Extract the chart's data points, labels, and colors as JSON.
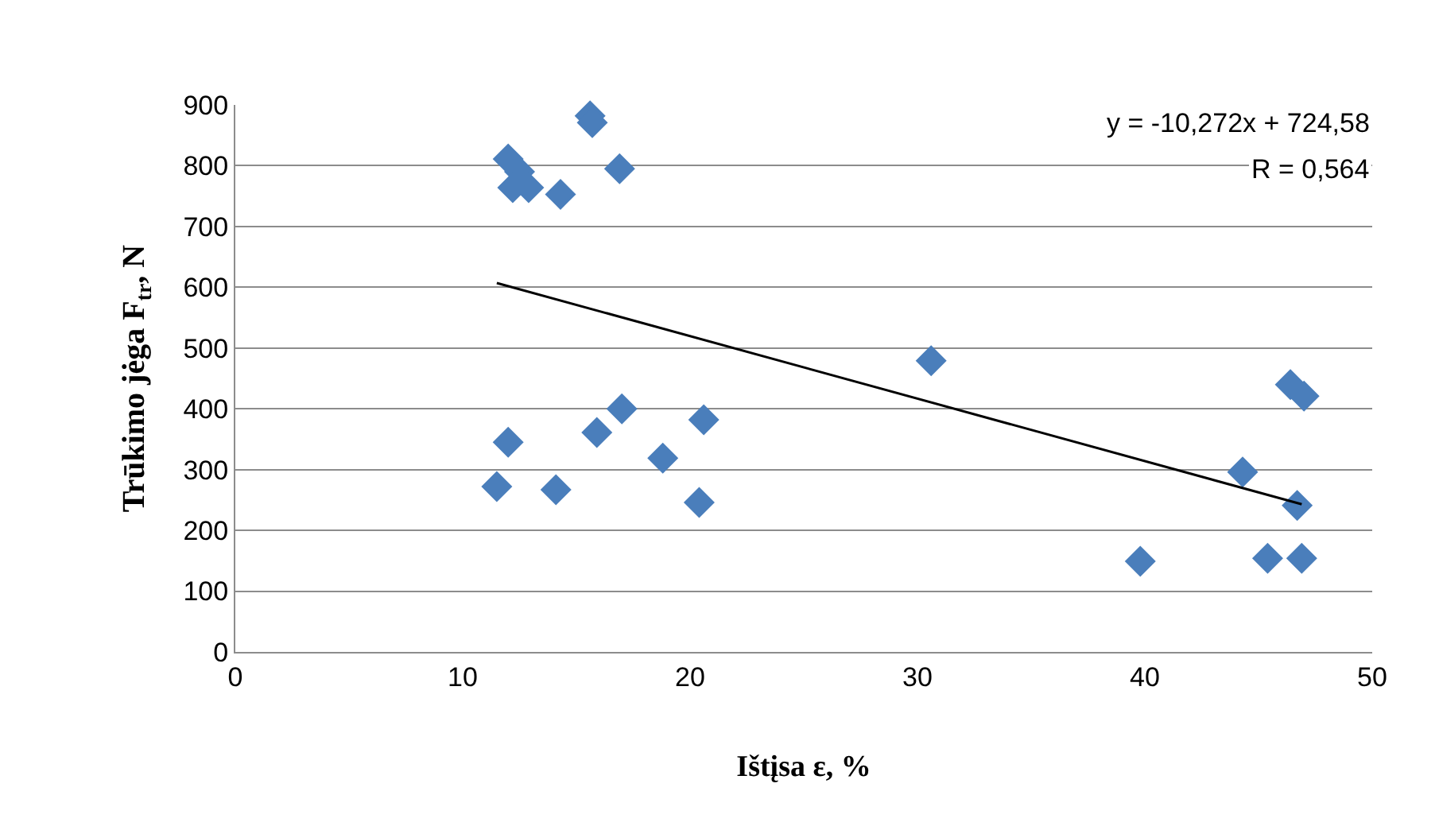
{
  "chart_data": {
    "type": "scatter",
    "xlabel": "Ištįsa ε, %",
    "ylabel": "Trūkimo jėga F$_{tr}$, N",
    "annotations": [
      "y = -10,272x + 724,58",
      "R = 0,564"
    ],
    "xlim": [
      0,
      50
    ],
    "xticks": [
      0,
      10,
      20,
      30,
      40,
      50
    ],
    "ylim": [
      0,
      900
    ],
    "yticks": [
      0,
      100,
      200,
      300,
      400,
      500,
      600,
      700,
      800,
      900
    ],
    "grid": "y",
    "marker": "diamond",
    "series": [
      {
        "color": "#4a7ebb",
        "x": [
          12.0,
          12.5,
          12.2,
          12.9,
          14.3,
          15.6,
          15.7,
          16.9,
          17.0,
          15.9,
          12.0,
          11.5,
          14.1,
          18.8,
          20.6,
          20.4,
          30.6,
          46.4,
          47.0,
          44.3,
          46.7,
          39.8,
          45.4,
          46.9
        ],
        "values": [
          811,
          790,
          764,
          764,
          753,
          882,
          871,
          795,
          400,
          361,
          345,
          272,
          267,
          319,
          382,
          246,
          479,
          440,
          421,
          296,
          241,
          149,
          154,
          154
        ]
      },
      {
        "type": "line",
        "color": "#000000",
        "marker": "none",
        "line_style": "solid",
        "x": [
          11.5,
          46.9
        ],
        "values": [
          607,
          243
        ]
      }
    ]
  }
}
